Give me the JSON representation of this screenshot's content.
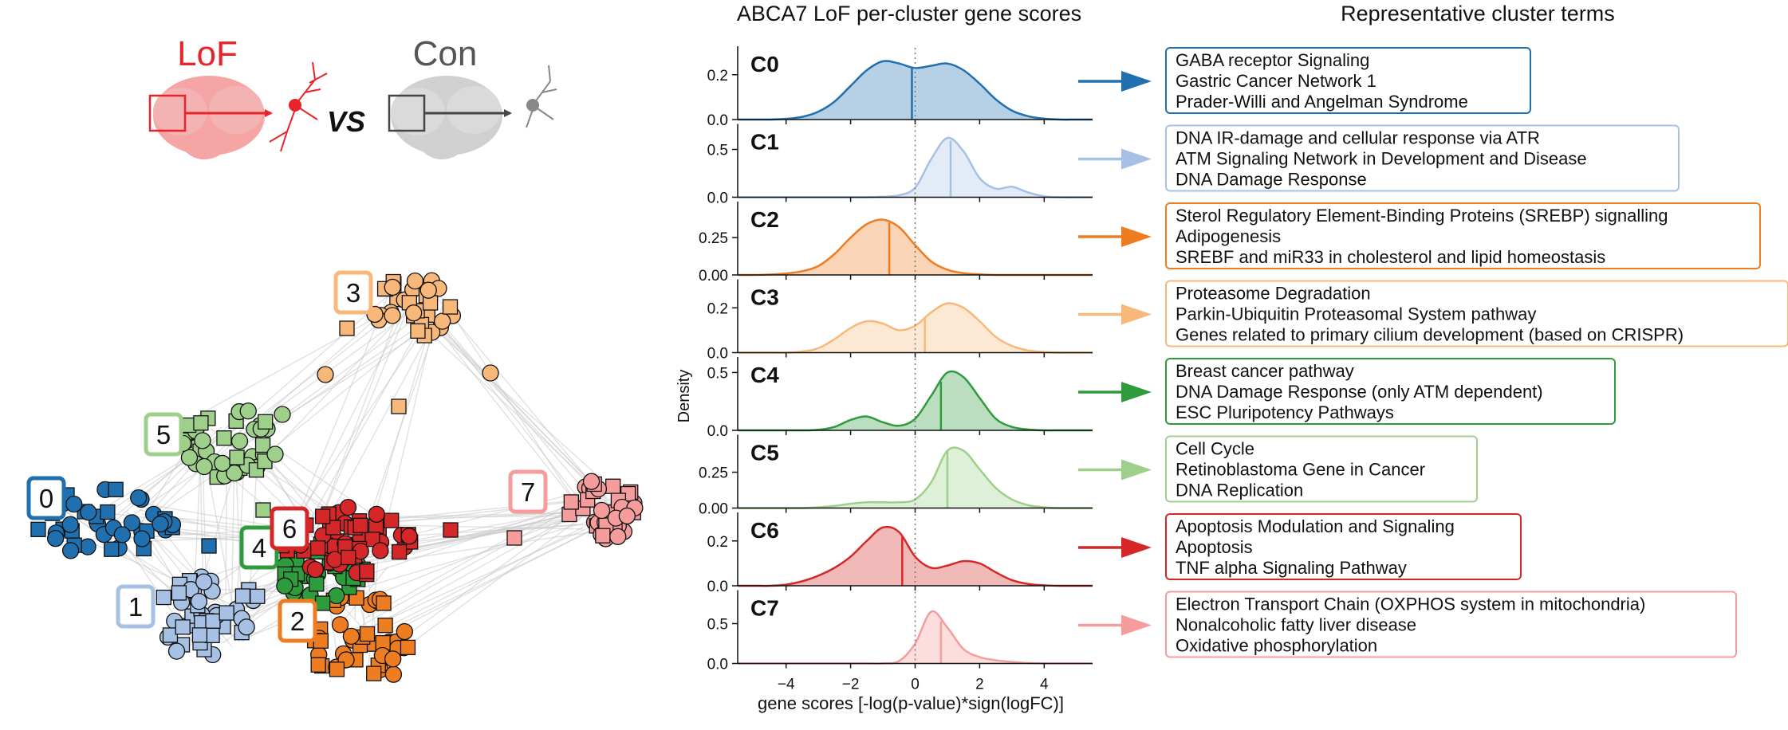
{
  "network_panel": {
    "lof_label": "LoF",
    "con_label": "Con",
    "vs_label": "VS",
    "cluster_labels": [
      "0",
      "1",
      "2",
      "3",
      "4",
      "5",
      "6",
      "7"
    ],
    "colors": {
      "c0": "#2070b0",
      "c1": "#a6c1e4",
      "c2": "#ee7d22",
      "c3": "#f7b879",
      "c4": "#2e9c3c",
      "c5": "#9fd08b",
      "c6": "#d62728",
      "c7": "#f59c9c",
      "lof": "#e8232a",
      "con": "#555555",
      "edge": "#c8c8c8"
    }
  },
  "density_panel": {
    "title": "ABCA7 LoF per-cluster gene scores",
    "ylabel": "Density",
    "xlabel": "gene scores [-log(p-value)*sign(logFC)]"
  },
  "terms_panel": {
    "title": "Representative cluster terms",
    "clusters": [
      {
        "terms": [
          "GABA receptor Signaling",
          "Gastric Cancer Network 1",
          "Prader-Willi and Angelman Syndrome"
        ]
      },
      {
        "terms": [
          "DNA IR-damage and cellular response via ATR",
          "ATM Signaling Network in Development and Disease",
          "DNA Damage Response"
        ]
      },
      {
        "terms": [
          "Sterol Regulatory Element-Binding Proteins (SREBP) signalling",
          "Adipogenesis",
          "SREBF and miR33 in cholesterol and lipid homeostasis"
        ]
      },
      {
        "terms": [
          "Proteasome Degradation",
          "Parkin-Ubiquitin Proteasomal System pathway",
          "Genes related to primary cilium development (based on CRISPR)"
        ]
      },
      {
        "terms": [
          "Breast cancer pathway",
          "DNA Damage Response (only ATM dependent)",
          "ESC Pluripotency Pathways"
        ]
      },
      {
        "terms": [
          "Cell Cycle",
          "Retinoblastoma Gene in Cancer",
          "DNA Replication"
        ]
      },
      {
        "terms": [
          "Apoptosis Modulation and Signaling",
          "Apoptosis",
          "TNF alpha Signaling Pathway"
        ]
      },
      {
        "terms": [
          "Electron Transport Chain (OXPHOS system in mitochondria)",
          "Nonalcoholic fatty liver disease",
          "Oxidative phosphorylation"
        ]
      }
    ]
  },
  "chart_data": {
    "type": "area",
    "title": "ABCA7 LoF per-cluster gene scores",
    "xlabel": "gene scores [-log(p-value)*sign(logFC)]",
    "ylabel": "Density",
    "xlim": [
      -5.5,
      5.5
    ],
    "xticks": [
      -4,
      -2,
      0,
      2,
      4
    ],
    "x": [
      -5.5,
      -5,
      -4.5,
      -4,
      -3.5,
      -3,
      -2.5,
      -2,
      -1.5,
      -1,
      -0.5,
      0,
      0.5,
      1,
      1.5,
      2,
      2.5,
      3,
      3.5,
      4,
      4.5,
      5,
      5.5
    ],
    "series": [
      {
        "name": "C0",
        "color": "#2070b0",
        "ylim": [
          0,
          0.32
        ],
        "yticks": [
          "0.0",
          "0.2"
        ],
        "tick_values": [
          0,
          0.2
        ],
        "median": -0.1,
        "values": [
          0,
          0,
          0,
          0.003,
          0.012,
          0.035,
          0.08,
          0.15,
          0.22,
          0.26,
          0.25,
          0.23,
          0.24,
          0.25,
          0.22,
          0.16,
          0.09,
          0.04,
          0.015,
          0.004,
          0,
          0,
          0
        ]
      },
      {
        "name": "C1",
        "color": "#a6c1e4",
        "ylim": [
          0,
          0.75
        ],
        "yticks": [
          "0.0",
          "0.5"
        ],
        "tick_values": [
          0,
          0.5
        ],
        "median": 1.1,
        "values": [
          0,
          0,
          0,
          0,
          0,
          0,
          0,
          0,
          0,
          0.005,
          0.02,
          0.1,
          0.4,
          0.62,
          0.48,
          0.2,
          0.09,
          0.11,
          0.05,
          0.01,
          0,
          0,
          0
        ]
      },
      {
        "name": "C2",
        "color": "#ee7d22",
        "ylim": [
          0,
          0.48
        ],
        "yticks": [
          "0.00",
          "0.25"
        ],
        "tick_values": [
          0,
          0.25
        ],
        "median": -0.8,
        "values": [
          0,
          0,
          0.003,
          0.01,
          0.025,
          0.06,
          0.14,
          0.25,
          0.34,
          0.37,
          0.32,
          0.2,
          0.09,
          0.035,
          0.012,
          0.004,
          0,
          0,
          0,
          0,
          0,
          0,
          0
        ]
      },
      {
        "name": "C3",
        "color": "#f7b879",
        "ylim": [
          0,
          0.32
        ],
        "yticks": [
          "0.0",
          "0.2"
        ],
        "tick_values": [
          0,
          0.2
        ],
        "median": 0.3,
        "values": [
          0,
          0,
          0,
          0,
          0.005,
          0.02,
          0.06,
          0.11,
          0.14,
          0.13,
          0.1,
          0.12,
          0.18,
          0.22,
          0.2,
          0.14,
          0.07,
          0.03,
          0.01,
          0.003,
          0,
          0,
          0
        ]
      },
      {
        "name": "C4",
        "color": "#2e9c3c",
        "ylim": [
          0,
          0.62
        ],
        "yticks": [
          "0.0",
          "0.5"
        ],
        "tick_values": [
          0,
          0.5
        ],
        "median": 0.8,
        "values": [
          0,
          0,
          0,
          0,
          0,
          0.005,
          0.03,
          0.09,
          0.12,
          0.07,
          0.04,
          0.1,
          0.3,
          0.5,
          0.46,
          0.28,
          0.1,
          0.03,
          0.008,
          0,
          0,
          0,
          0
        ]
      },
      {
        "name": "C5",
        "color": "#9fd08b",
        "ylim": [
          0,
          0.5
        ],
        "yticks": [
          "0.00",
          "0.25"
        ],
        "tick_values": [
          0,
          0.25
        ],
        "median": 1.0,
        "values": [
          0,
          0,
          0,
          0,
          0,
          0.005,
          0.015,
          0.03,
          0.04,
          0.04,
          0.04,
          0.06,
          0.18,
          0.4,
          0.4,
          0.27,
          0.14,
          0.06,
          0.02,
          0.005,
          0,
          0,
          0
        ]
      },
      {
        "name": "C6",
        "color": "#d62728",
        "ylim": [
          0,
          0.32
        ],
        "yticks": [
          "0.0",
          "0.2"
        ],
        "tick_values": [
          0,
          0.2
        ],
        "median": -0.4,
        "values": [
          0,
          0,
          0,
          0.005,
          0.02,
          0.045,
          0.08,
          0.13,
          0.2,
          0.26,
          0.24,
          0.13,
          0.08,
          0.09,
          0.11,
          0.1,
          0.06,
          0.025,
          0.008,
          0.002,
          0,
          0,
          0
        ]
      },
      {
        "name": "C7",
        "color": "#f59c9c",
        "ylim": [
          0,
          0.9
        ],
        "yticks": [
          "0.0",
          "0.5"
        ],
        "tick_values": [
          0,
          0.5
        ],
        "median": 0.8,
        "values": [
          0,
          0,
          0,
          0,
          0,
          0,
          0,
          0,
          0,
          0,
          0.03,
          0.25,
          0.65,
          0.45,
          0.18,
          0.08,
          0.04,
          0.02,
          0.005,
          0,
          0,
          0,
          0
        ]
      }
    ]
  }
}
